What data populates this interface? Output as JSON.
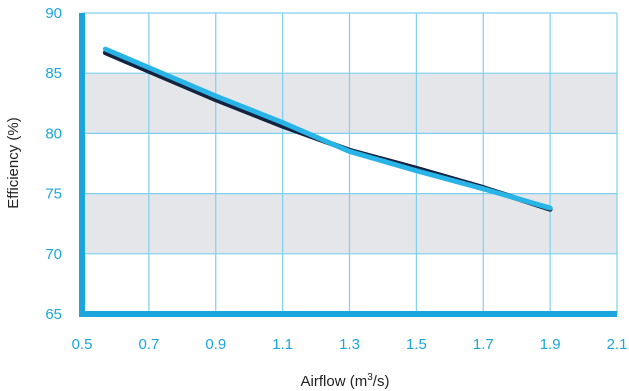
{
  "chart_data": {
    "type": "line",
    "xlabel_main": "Airflow (m",
    "xlabel_sup": "3",
    "xlabel_end": "/s)",
    "ylabel": "Efficiency (%)",
    "xlim": [
      0.5,
      2.1
    ],
    "ylim": [
      65,
      90
    ],
    "xticks": [
      "0.5",
      "0.7",
      "0.9",
      "1.1",
      "1.3",
      "1.5",
      "1.7",
      "1.9",
      "2.1"
    ],
    "yticks": [
      "65",
      "70",
      "75",
      "80",
      "85",
      "90"
    ],
    "shaded_bands": [
      [
        70,
        75
      ],
      [
        80,
        85
      ]
    ],
    "grid": true,
    "series": [
      {
        "color": "#14233f",
        "x": [
          0.57,
          0.9,
          1.1,
          1.3,
          1.5,
          1.7,
          1.9
        ],
        "y": [
          86.7,
          82.8,
          80.6,
          78.6,
          77.1,
          75.5,
          73.7
        ]
      },
      {
        "color": "#28b4e6",
        "x": [
          0.57,
          0.9,
          1.1,
          1.3,
          1.5,
          1.7,
          1.9
        ],
        "y": [
          87.0,
          83.1,
          80.9,
          78.5,
          76.9,
          75.4,
          73.8
        ]
      }
    ],
    "colors": {
      "axis": "#1aa6dc",
      "grid": "#7fd0f0",
      "band": "#e4e6ea",
      "tick_text": "#1aa6dc"
    }
  }
}
